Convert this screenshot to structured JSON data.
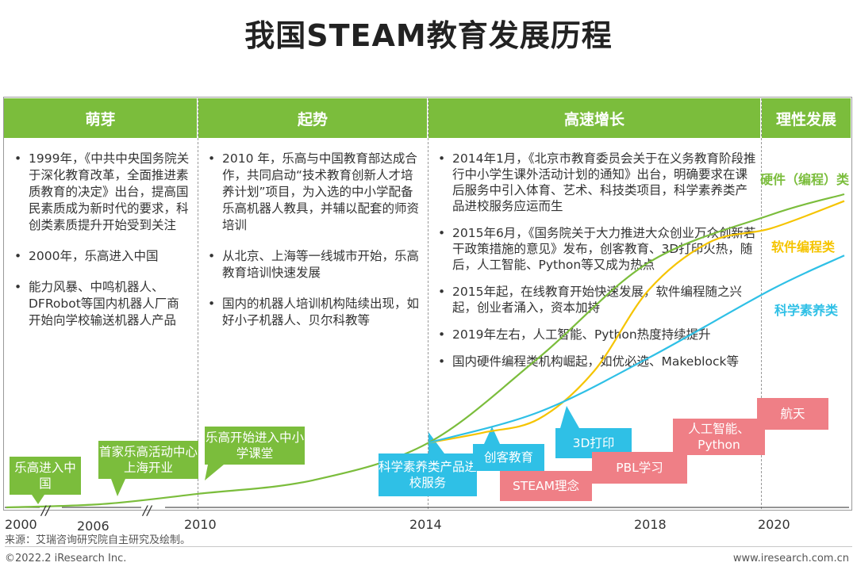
{
  "title": "我国STEAM教育发展历程",
  "phases": [
    {
      "label": "萌芽",
      "events": [
        "1999年，《中共中央国务院关于深化教育改革，全面推进素质教育的决定》出台，提高国民素质成为新时代的要求，科创类素质提升开始受到关注",
        "2000年，乐高进入中国",
        "能力风暴、中鸣机器人、DFRobot等国内机器人厂商开始向学校输送机器人产品"
      ]
    },
    {
      "label": "起势",
      "events": [
        "2010 年，乐高与中国教育部达成合作，共同启动“技术教育创新人才培养计划”项目，为入选的中小学配备乐高机器人教具，并辅以配套的师资培训",
        "从北京、上海等一线城市开始，乐高教育培训快速发展",
        "国内的机器人培训机构陆续出现，如好小子机器人、贝尔科教等"
      ]
    },
    {
      "label": "高速增长",
      "events": [
        "2014年1月，《北京市教育委员会关于在义务教育阶段推行中小学生课外活动计划的通知》出台，明确要求在课后服务中引入体育、艺术、科技类项目，科学素养类产品进校服务应运而生",
        "2015年6月，《国务院关于大力推进大众创业万众创新若干政策措施的意见》发布，创客教育、3D打印火热，随后，人工智能、Python等又成为热点",
        "2015年起，在线教育开始快速发展，软件编程随之兴起，创业者涌入，资本加持",
        "2019年左右，人工智能、Python热度持续提升",
        "国内硬件编程类机构崛起，如优必选、Makeblock等"
      ]
    },
    {
      "label": "理性发展",
      "events": []
    }
  ],
  "milestones_green": [
    "乐高进入中国",
    "首家乐高活动中心上海开业",
    "乐高开始进入中小学课堂"
  ],
  "milestones_blue": [
    "科学素养类产品进校服务",
    "创客教育",
    "3D打印"
  ],
  "milestones_pink": [
    "STEAM理念",
    "PBL学习",
    "人工智能、Python",
    "航天"
  ],
  "footer": {
    "source": "来源：艾瑞咨询研究院自主研究及绘制。",
    "copyright": "©2022.2 iResearch Inc.",
    "website": "www.iresearch.com.cn"
  },
  "chart_data": {
    "type": "line",
    "x_ticks": [
      "2000",
      "2006",
      "2010",
      "2014",
      "2018",
      "2020"
    ],
    "axis_break_marks": [
      "//",
      "//"
    ],
    "series": [
      {
        "name": "硬件（编程）类",
        "color": "#7bbd3c",
        "points": [
          [
            2000,
            0.0
          ],
          [
            2006,
            0.05
          ],
          [
            2010,
            0.2
          ],
          [
            2012,
            0.4
          ],
          [
            2014,
            0.95
          ],
          [
            2016,
            2.2
          ],
          [
            2018,
            3.6
          ],
          [
            2020,
            4.3
          ],
          [
            2021,
            4.6
          ]
        ]
      },
      {
        "name": "软件编程类",
        "color": "#f5c400",
        "points": [
          [
            2014,
            0.95
          ],
          [
            2015,
            1.1
          ],
          [
            2016,
            1.3
          ],
          [
            2017,
            2.0
          ],
          [
            2018,
            3.2
          ],
          [
            2019,
            3.9
          ],
          [
            2020,
            4.1
          ],
          [
            2021,
            4.5
          ]
        ]
      },
      {
        "name": "科学素养类",
        "color": "#2fc0e6",
        "points": [
          [
            2014,
            0.95
          ],
          [
            2016,
            1.4
          ],
          [
            2018,
            2.2
          ],
          [
            2020,
            3.2
          ],
          [
            2021,
            3.7
          ]
        ]
      }
    ]
  }
}
